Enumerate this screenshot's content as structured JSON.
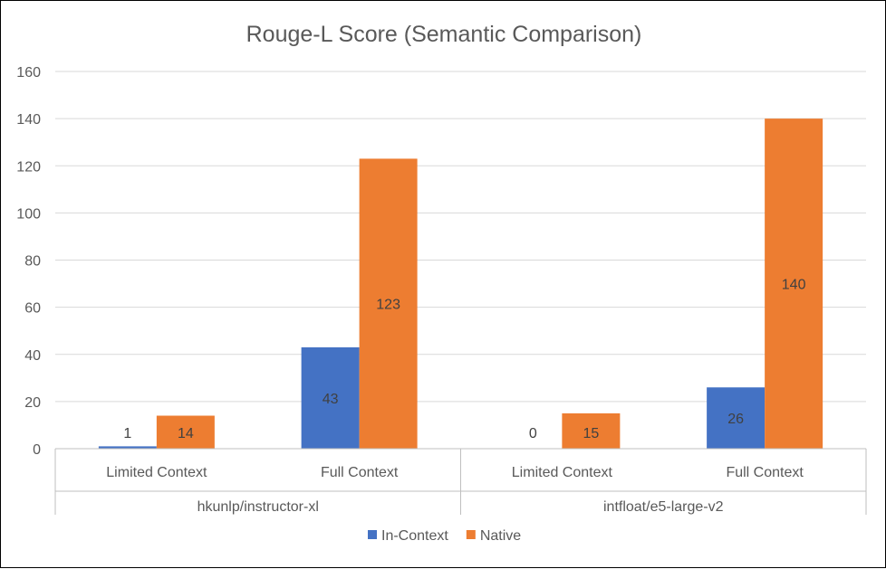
{
  "chart_data": {
    "type": "bar",
    "title": "Rouge-L Score (Semantic Comparison)",
    "xlabel": "",
    "ylabel": "",
    "ylim": [
      0,
      160
    ],
    "yticks": [
      0,
      20,
      40,
      60,
      80,
      100,
      120,
      140,
      160
    ],
    "grid": true,
    "legend_position": "bottom",
    "groups": [
      {
        "label": "hkunlp/instructor-xl",
        "categories": [
          "Limited Context",
          "Full Context"
        ]
      },
      {
        "label": "intfloat/e5-large-v2",
        "categories": [
          "Limited Context",
          "Full Context"
        ]
      }
    ],
    "series": [
      {
        "name": "In-Context",
        "color": "#4472C4",
        "values": [
          1,
          43,
          0,
          26
        ]
      },
      {
        "name": "Native",
        "color": "#ED7D31",
        "values": [
          14,
          123,
          15,
          140
        ]
      }
    ]
  }
}
